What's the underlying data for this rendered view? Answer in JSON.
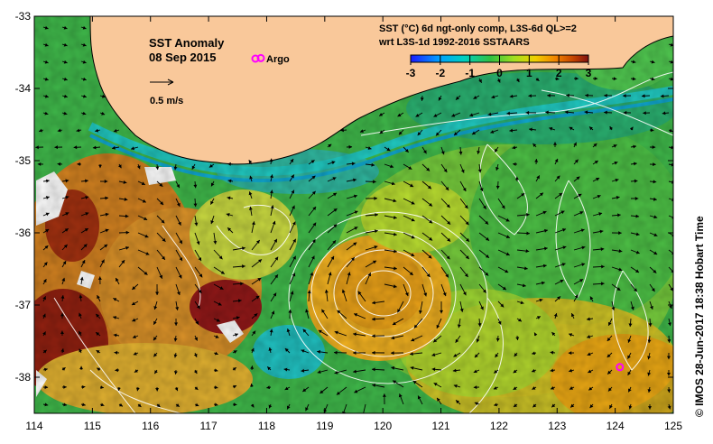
{
  "map": {
    "title": "SST Anomaly",
    "date": "08 Sep 2015",
    "argo_label": "Argo",
    "scale_label": "0.5 m/s",
    "product_line1": "SST (°C) 6d ngt-only comp, L3S-6d QL>=2",
    "product_line2": "wrt L3S-1d 1992-2016 SSTAARS",
    "credit": "© IMOS 28-Jun-2017 18:38 Hobart Time",
    "lon_range": [
      114,
      125
    ],
    "lat_range": [
      -38.5,
      -33
    ],
    "lon_ticks": [
      "114",
      "115",
      "116",
      "117",
      "118",
      "119",
      "120",
      "121",
      "122",
      "123",
      "124",
      "125"
    ],
    "lat_ticks": [
      "-33",
      "-34",
      "-35",
      "-36",
      "-37",
      "-38"
    ],
    "colorbar": {
      "ticks": [
        "-3",
        "-2",
        "-1",
        "0",
        "1",
        "2",
        "3"
      ],
      "range": [
        -3,
        3
      ],
      "colors": [
        "#1a1aff",
        "#00a0ff",
        "#00d0c0",
        "#30c040",
        "#a0e020",
        "#f0d000",
        "#f08000",
        "#c04000",
        "#801010"
      ]
    },
    "argo_floats": [
      {
        "lon": 117.9,
        "lat": -33.58
      },
      {
        "lon": 124.08,
        "lat": -37.86
      }
    ],
    "colors": {
      "land": "#f9c89a",
      "argo": "#ff00ff",
      "contour": "#ffffff",
      "arrow": "#000000"
    }
  }
}
